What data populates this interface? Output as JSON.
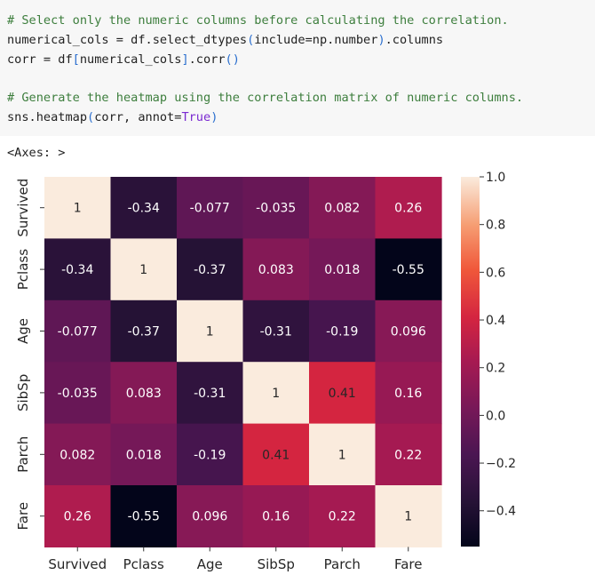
{
  "code": {
    "lines": [
      [
        {
          "t": "# Select only the numeric columns before calculating the correlation.",
          "c": "c-comment"
        }
      ],
      [
        {
          "t": "numerical_cols ",
          "c": ""
        },
        {
          "t": "=",
          "c": "c-op"
        },
        {
          "t": " df.select_dtypes",
          "c": ""
        },
        {
          "t": "(",
          "c": "c-paren"
        },
        {
          "t": "include",
          "c": ""
        },
        {
          "t": "=",
          "c": "c-op"
        },
        {
          "t": "np.number",
          "c": ""
        },
        {
          "t": ")",
          "c": "c-paren"
        },
        {
          "t": ".columns",
          "c": ""
        }
      ],
      [
        {
          "t": "corr ",
          "c": ""
        },
        {
          "t": "=",
          "c": "c-op"
        },
        {
          "t": " df",
          "c": ""
        },
        {
          "t": "[",
          "c": "c-paren"
        },
        {
          "t": "numerical_cols",
          "c": ""
        },
        {
          "t": "]",
          "c": "c-paren"
        },
        {
          "t": ".corr",
          "c": ""
        },
        {
          "t": "()",
          "c": "c-paren"
        }
      ],
      [
        {
          "t": "",
          "c": ""
        }
      ],
      [
        {
          "t": "# Generate the heatmap using the correlation matrix of numeric columns.",
          "c": "c-comment"
        }
      ],
      [
        {
          "t": "sns.heatmap",
          "c": ""
        },
        {
          "t": "(",
          "c": "c-paren"
        },
        {
          "t": "corr, annot",
          "c": ""
        },
        {
          "t": "=",
          "c": "c-op"
        },
        {
          "t": "True",
          "c": "c-kw"
        },
        {
          "t": ")",
          "c": "c-paren"
        }
      ]
    ]
  },
  "output": {
    "label": "<Axes: >"
  },
  "chart_data": {
    "type": "heatmap",
    "categories": [
      "Survived",
      "Pclass",
      "Age",
      "SibSp",
      "Parch",
      "Fare"
    ],
    "values": [
      [
        1,
        -0.34,
        -0.077,
        -0.035,
        0.082,
        0.26
      ],
      [
        -0.34,
        1,
        -0.37,
        0.083,
        0.018,
        -0.55
      ],
      [
        -0.077,
        -0.37,
        1,
        -0.31,
        -0.19,
        0.096
      ],
      [
        -0.035,
        0.083,
        -0.31,
        1,
        0.41,
        0.16
      ],
      [
        0.082,
        0.018,
        -0.19,
        0.41,
        1,
        0.22
      ],
      [
        0.26,
        -0.55,
        0.096,
        0.16,
        0.22,
        1
      ]
    ],
    "annotations": [
      [
        "1",
        "-0.34",
        "-0.077",
        "-0.035",
        "0.082",
        "0.26"
      ],
      [
        "-0.34",
        "1",
        "-0.37",
        "0.083",
        "0.018",
        "-0.55"
      ],
      [
        "-0.077",
        "-0.37",
        "1",
        "-0.31",
        "-0.19",
        "0.096"
      ],
      [
        "-0.035",
        "0.083",
        "-0.31",
        "1",
        "0.41",
        "0.16"
      ],
      [
        "0.082",
        "0.018",
        "-0.19",
        "0.41",
        "1",
        "0.22"
      ],
      [
        "0.26",
        "-0.55",
        "0.096",
        "0.16",
        "0.22",
        "1"
      ]
    ],
    "vmin": -0.55,
    "vmax": 1.0,
    "colormap": "rocket",
    "colorbar_ticks": [
      1.0,
      0.8,
      0.6,
      0.4,
      0.2,
      0.0,
      -0.2,
      -0.4
    ],
    "colorbar_tick_labels": [
      "1.0",
      "0.8",
      "0.6",
      "0.4",
      "0.2",
      "0.0",
      "−0.2",
      "−0.4"
    ],
    "title": "",
    "xlabel": "",
    "ylabel": ""
  }
}
